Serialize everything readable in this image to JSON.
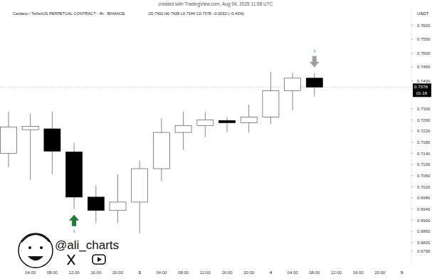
{
  "chart_data": {
    "type": "candlestick",
    "title": "Cardano / TetherUS PERPETUAL CONTRACT · 4h · BINANCE",
    "subtitle": "O0.7410 H0.7428 L0.7344 C0.7378 −0.0032 (−0.43%)",
    "credit": "created with TradingView.com, Aug 04, 2025 11:58 UTC",
    "watermark": "@ali_charts",
    "ylabel": "USDT",
    "x": [
      null,
      "04:00",
      "08:00",
      "12:00",
      "16:00",
      "20:00",
      "3",
      "04:00",
      "08:00",
      "12:00",
      "16:00",
      "20:00",
      "4",
      "04:00",
      "08:00",
      "12:00",
      "16:00",
      "20:00",
      "5"
    ],
    "open": [
      0.714,
      0.7225,
      0.7228,
      0.7145,
      0.6983,
      0.6935,
      0.6965,
      0.7085,
      0.7215,
      0.724,
      0.7258,
      0.725,
      0.727,
      0.7365,
      0.741,
      null,
      null,
      null,
      null
    ],
    "high": [
      0.729,
      0.7283,
      0.729,
      0.7178,
      0.7025,
      0.7065,
      0.7115,
      0.7265,
      0.729,
      0.729,
      0.727,
      0.7315,
      0.7433,
      0.7428,
      0.7428,
      null,
      null,
      null,
      null
    ],
    "low": [
      0.709,
      0.7045,
      0.7065,
      0.694,
      0.689,
      0.689,
      0.6853,
      0.704,
      0.7153,
      0.7198,
      0.7215,
      0.7215,
      0.7245,
      0.7295,
      0.7344,
      null,
      null,
      null,
      null
    ],
    "close": [
      0.7235,
      0.7237,
      0.7148,
      0.6983,
      0.6935,
      0.6965,
      0.7085,
      0.7215,
      0.724,
      0.726,
      0.725,
      0.727,
      0.7365,
      0.741,
      0.7378,
      null,
      null,
      null,
      null
    ],
    "ylim": [
      0.674,
      0.7665
    ],
    "yticks": [
      {
        "value": 0.76,
        "label": "0.7600"
      },
      {
        "value": 0.755,
        "label": "0.7550"
      },
      {
        "value": 0.75,
        "label": "0.7500"
      },
      {
        "value": 0.745,
        "label": "0.7450"
      },
      {
        "value": 0.74,
        "label": "0.7400"
      },
      {
        "value": 0.73,
        "label": "0.7300"
      },
      {
        "value": 0.726,
        "label": "0.7260"
      },
      {
        "value": 0.722,
        "label": "0.7220"
      },
      {
        "value": 0.718,
        "label": "0.7180"
      },
      {
        "value": 0.714,
        "label": "0.7140"
      },
      {
        "value": 0.71,
        "label": "0.7100"
      },
      {
        "value": 0.706,
        "label": "0.7060"
      },
      {
        "value": 0.702,
        "label": "0.7020"
      },
      {
        "value": 0.698,
        "label": "0.6980"
      },
      {
        "value": 0.694,
        "label": "0.6940"
      },
      {
        "value": 0.69,
        "label": "0.6900"
      },
      {
        "value": 0.686,
        "label": "0.6860"
      },
      {
        "value": 0.682,
        "label": "0.6820"
      },
      {
        "value": 0.679,
        "label": "0.6790"
      }
    ],
    "last_price": {
      "value": 0.7378,
      "label": "0.7378"
    },
    "countdown": "01:18",
    "annotations": [
      {
        "text": "9",
        "index": 3,
        "marker": "arrow-up",
        "color": "#1e7b34"
      },
      {
        "text": "9",
        "index": 14,
        "marker": "arrow-down",
        "color": "#9e9e9e"
      }
    ],
    "grid": false,
    "color": "#000000"
  }
}
